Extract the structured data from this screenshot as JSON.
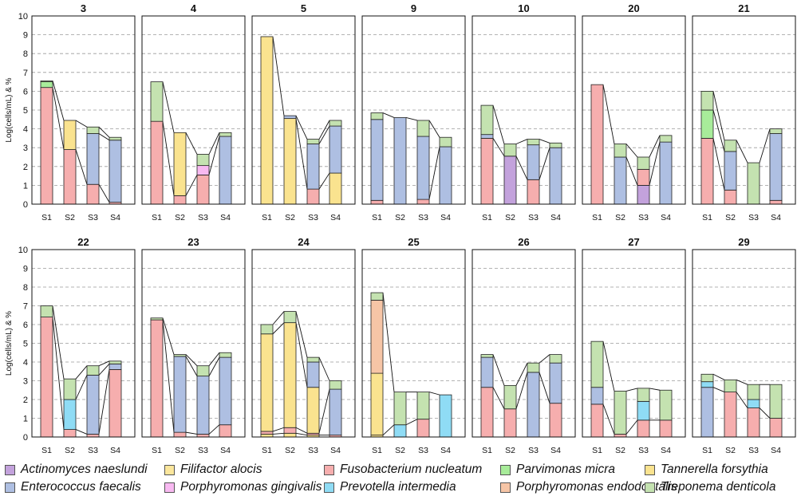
{
  "chart_data": {
    "type": "stacked-bar",
    "ylabel": "Log(cells/mL) & %",
    "ylim": [
      0,
      10
    ],
    "yticks": [
      "0",
      "1",
      "2",
      "3",
      "4",
      "5",
      "6",
      "7",
      "8",
      "9",
      "10"
    ],
    "xcategories": [
      "S1",
      "S2",
      "S3",
      "S4"
    ],
    "species": [
      {
        "key": "an",
        "name": "Actinomyces naeslundi",
        "color": "#c3a2dc"
      },
      {
        "key": "fa",
        "name": "Filifactor alocis",
        "color": "#fbe69c"
      },
      {
        "key": "fn",
        "name": "Fusobacterium nucleatum",
        "color": "#f6aeae"
      },
      {
        "key": "pm",
        "name": "Parvimonas micra",
        "color": "#a8ec9a"
      },
      {
        "key": "tf",
        "name": "Tannerella forsythia",
        "color": "#fae38f"
      },
      {
        "key": "ef",
        "name": "Enterococcus faecalis",
        "color": "#aebfe2"
      },
      {
        "key": "pg",
        "name": "Porphyromonas gingivalis",
        "color": "#f8b9f1"
      },
      {
        "key": "pi",
        "name": "Prevotella intermedia",
        "color": "#8fdcf5"
      },
      {
        "key": "pe",
        "name": "Porphyromonas endodontalis",
        "color": "#f6c5a6"
      },
      {
        "key": "td",
        "name": "Treponema denticola",
        "color": "#c4e2b0"
      }
    ],
    "panels": [
      {
        "title": "3",
        "bars": [
          [
            [
              "fn",
              6.2
            ],
            [
              "pm",
              0.3
            ],
            [
              "td",
              0.05
            ]
          ],
          [
            [
              "fn",
              2.9
            ],
            [
              "tf",
              1.55
            ]
          ],
          [
            [
              "fn",
              1.05
            ],
            [
              "ef",
              2.7
            ],
            [
              "td",
              0.35
            ]
          ],
          [
            [
              "fn",
              0.1
            ],
            [
              "ef",
              3.3
            ],
            [
              "td",
              0.15
            ]
          ]
        ]
      },
      {
        "title": "4",
        "bars": [
          [
            [
              "fn",
              4.4
            ],
            [
              "td",
              2.1
            ]
          ],
          [
            [
              "fn",
              0.45
            ],
            [
              "tf",
              3.35
            ]
          ],
          [
            [
              "fn",
              1.55
            ],
            [
              "pg",
              0.5
            ],
            [
              "td",
              0.6
            ]
          ],
          [
            [
              "ef",
              3.6
            ],
            [
              "td",
              0.2
            ]
          ]
        ]
      },
      {
        "title": "5",
        "bars": [
          [
            [
              "tf",
              8.9
            ]
          ],
          [
            [
              "tf",
              4.55
            ],
            [
              "ef",
              0.15
            ]
          ],
          [
            [
              "fn",
              0.8
            ],
            [
              "ef",
              2.4
            ],
            [
              "td",
              0.25
            ]
          ],
          [
            [
              "tf",
              1.65
            ],
            [
              "ef",
              2.5
            ],
            [
              "td",
              0.3
            ]
          ]
        ]
      },
      {
        "title": "9",
        "bars": [
          [
            [
              "fn",
              0.2
            ],
            [
              "ef",
              4.3
            ],
            [
              "td",
              0.35
            ]
          ],
          [
            [
              "ef",
              4.6
            ]
          ],
          [
            [
              "fn",
              0.25
            ],
            [
              "ef",
              3.35
            ],
            [
              "td",
              0.85
            ]
          ],
          [
            [
              "ef",
              3.05
            ],
            [
              "td",
              0.5
            ]
          ]
        ]
      },
      {
        "title": "10",
        "bars": [
          [
            [
              "fn",
              3.5
            ],
            [
              "ef",
              0.2
            ],
            [
              "td",
              1.55
            ]
          ],
          [
            [
              "an",
              2.55
            ],
            [
              "td",
              0.65
            ]
          ],
          [
            [
              "fn",
              1.3
            ],
            [
              "ef",
              1.85
            ],
            [
              "td",
              0.3
            ]
          ],
          [
            [
              "ef",
              3.0
            ],
            [
              "td",
              0.25
            ]
          ]
        ]
      },
      {
        "title": "20",
        "bars": [
          [
            [
              "fn",
              6.35
            ]
          ],
          [
            [
              "ef",
              2.5
            ],
            [
              "td",
              0.7
            ]
          ],
          [
            [
              "an",
              1.0
            ],
            [
              "fn",
              0.85
            ],
            [
              "td",
              0.65
            ]
          ],
          [
            [
              "ef",
              3.3
            ],
            [
              "td",
              0.35
            ]
          ]
        ]
      },
      {
        "title": "21",
        "bars": [
          [
            [
              "fn",
              3.5
            ],
            [
              "pm",
              1.5
            ],
            [
              "td",
              1.0
            ]
          ],
          [
            [
              "fn",
              0.75
            ],
            [
              "ef",
              2.05
            ],
            [
              "td",
              0.6
            ]
          ],
          [
            [
              "td",
              2.2
            ]
          ],
          [
            [
              "fn",
              0.2
            ],
            [
              "ef",
              3.55
            ],
            [
              "td",
              0.25
            ]
          ]
        ]
      },
      {
        "title": "22",
        "bars": [
          [
            [
              "fn",
              6.4
            ],
            [
              "td",
              0.6
            ]
          ],
          [
            [
              "fn",
              0.4
            ],
            [
              "pi",
              1.6
            ],
            [
              "td",
              1.1
            ]
          ],
          [
            [
              "fn",
              0.15
            ],
            [
              "ef",
              3.15
            ],
            [
              "td",
              0.5
            ]
          ],
          [
            [
              "fn",
              3.6
            ],
            [
              "ef",
              0.3
            ],
            [
              "td",
              0.15
            ]
          ]
        ]
      },
      {
        "title": "23",
        "bars": [
          [
            [
              "fn",
              6.25
            ],
            [
              "td",
              0.1
            ]
          ],
          [
            [
              "fn",
              0.25
            ],
            [
              "ef",
              4.05
            ],
            [
              "td",
              0.1
            ]
          ],
          [
            [
              "fn",
              0.15
            ],
            [
              "ef",
              3.1
            ],
            [
              "td",
              0.55
            ]
          ],
          [
            [
              "fn",
              0.65
            ],
            [
              "ef",
              3.6
            ],
            [
              "td",
              0.25
            ]
          ]
        ]
      },
      {
        "title": "24",
        "bars": [
          [
            [
              "tf",
              0.15
            ],
            [
              "fn",
              0.15
            ],
            [
              "tf",
              5.2
            ],
            [
              "td",
              0.5
            ]
          ],
          [
            [
              "tf",
              0.2
            ],
            [
              "fn",
              0.3
            ],
            [
              "tf",
              5.6
            ],
            [
              "td",
              0.6
            ]
          ],
          [
            [
              "tf",
              0.1
            ],
            [
              "fn",
              0.1
            ],
            [
              "tf",
              2.45
            ],
            [
              "ef",
              1.35
            ],
            [
              "td",
              0.25
            ]
          ],
          [
            [
              "fn",
              0.1
            ],
            [
              "ef",
              2.45
            ],
            [
              "td",
              0.45
            ]
          ]
        ]
      },
      {
        "title": "25",
        "bars": [
          [
            [
              "tf",
              0.1
            ],
            [
              "tf",
              3.3
            ],
            [
              "pe",
              3.9
            ],
            [
              "td",
              0.4
            ]
          ],
          [
            [
              "pi",
              0.65
            ],
            [
              "td",
              1.75
            ]
          ],
          [
            [
              "fn",
              0.95
            ],
            [
              "td",
              1.45
            ]
          ],
          [
            [
              "pi",
              2.25
            ]
          ]
        ]
      },
      {
        "title": "26",
        "bars": [
          [
            [
              "fn",
              2.65
            ],
            [
              "ef",
              1.6
            ],
            [
              "td",
              0.15
            ]
          ],
          [
            [
              "fn",
              1.5
            ],
            [
              "td",
              1.25
            ]
          ],
          [
            [
              "ef",
              3.45
            ],
            [
              "td",
              0.5
            ]
          ],
          [
            [
              "fn",
              1.8
            ],
            [
              "ef",
              2.15
            ],
            [
              "td",
              0.45
            ]
          ]
        ]
      },
      {
        "title": "27",
        "bars": [
          [
            [
              "fn",
              1.75
            ],
            [
              "ef",
              0.9
            ],
            [
              "td",
              2.45
            ]
          ],
          [
            [
              "fn",
              0.15
            ],
            [
              "td",
              2.3
            ]
          ],
          [
            [
              "fn",
              0.9
            ],
            [
              "pi",
              1.0
            ],
            [
              "td",
              0.7
            ]
          ],
          [
            [
              "fn",
              0.9
            ],
            [
              "td",
              1.6
            ]
          ]
        ]
      },
      {
        "title": "29",
        "bars": [
          [
            [
              "ef",
              2.65
            ],
            [
              "pi",
              0.3
            ],
            [
              "td",
              0.4
            ]
          ],
          [
            [
              "fn",
              2.4
            ],
            [
              "td",
              0.65
            ]
          ],
          [
            [
              "fn",
              1.55
            ],
            [
              "pi",
              0.45
            ],
            [
              "td",
              0.8
            ]
          ],
          [
            [
              "fn",
              1.0
            ],
            [
              "td",
              1.8
            ]
          ]
        ]
      }
    ]
  }
}
